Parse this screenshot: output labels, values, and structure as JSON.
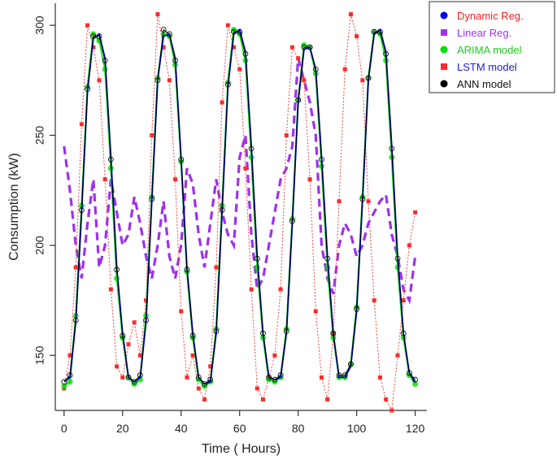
{
  "chart_data": {
    "type": "line",
    "xlabel": "Time ( Hours)",
    "ylabel": "Consumption (kW)",
    "xlim": [
      -3,
      124
    ],
    "ylim": [
      125,
      310
    ],
    "xticks": [
      0,
      20,
      40,
      60,
      80,
      100,
      120
    ],
    "yticks": [
      150,
      200,
      250,
      300
    ],
    "grid": false,
    "legend_position": "top-right",
    "x": [
      0,
      2,
      4,
      6,
      8,
      10,
      12,
      14,
      16,
      18,
      20,
      22,
      24,
      26,
      28,
      30,
      32,
      34,
      36,
      38,
      40,
      42,
      44,
      46,
      48,
      50,
      52,
      54,
      56,
      58,
      60,
      62,
      64,
      66,
      68,
      70,
      72,
      74,
      76,
      78,
      80,
      82,
      84,
      86,
      88,
      90,
      92,
      94,
      96,
      98,
      100,
      102,
      104,
      106,
      108,
      110,
      112,
      114,
      116,
      118,
      120
    ],
    "series": [
      {
        "name": "Dynamic Reg.",
        "color": "#0000ee",
        "marker": "circle",
        "values": [
          138,
          140,
          165,
          215,
          270,
          294,
          296,
          285,
          240,
          190,
          160,
          140,
          138,
          140,
          165,
          220,
          275,
          295,
          296,
          285,
          240,
          190,
          160,
          140,
          137,
          138,
          160,
          215,
          272,
          296,
          298,
          288,
          245,
          195,
          160,
          140,
          139,
          140,
          160,
          210,
          265,
          289,
          290,
          280,
          240,
          195,
          160,
          140,
          140,
          145,
          170,
          220,
          275,
          296,
          298,
          288,
          245,
          195,
          160,
          142,
          138
        ]
      },
      {
        "name": "Linear Reg.",
        "color": "#a030f0",
        "marker": "square",
        "values": [
          245,
          225,
          200,
          185,
          210,
          230,
          190,
          200,
          230,
          215,
          200,
          205,
          222,
          210,
          195,
          185,
          200,
          220,
          195,
          185,
          200,
          235,
          228,
          205,
          190,
          210,
          230,
          215,
          205,
          200,
          240,
          250,
          205,
          180,
          185,
          200,
          215,
          230,
          235,
          245,
          285,
          275,
          265,
          250,
          200,
          185,
          178,
          200,
          210,
          205,
          195,
          200,
          210,
          215,
          220,
          223,
          205,
          195,
          180,
          175,
          195
        ]
      },
      {
        "name": "ARIMA model",
        "color": "#00e000",
        "marker": "circle",
        "values": [
          136,
          138,
          168,
          218,
          272,
          296,
          293,
          280,
          235,
          185,
          158,
          140,
          137,
          139,
          168,
          222,
          276,
          296,
          295,
          282,
          238,
          188,
          158,
          139,
          136,
          138,
          162,
          218,
          274,
          298,
          296,
          284,
          240,
          190,
          158,
          139,
          138,
          140,
          162,
          212,
          266,
          291,
          290,
          278,
          236,
          190,
          158,
          140,
          140,
          146,
          172,
          222,
          276,
          297,
          296,
          284,
          240,
          190,
          158,
          141,
          137
        ]
      },
      {
        "name": "LSTM model",
        "color": "#ff2a2a",
        "marker": "square",
        "values": [
          135,
          150,
          190,
          255,
          300,
          290,
          275,
          230,
          180,
          145,
          140,
          155,
          165,
          150,
          175,
          250,
          305,
          290,
          275,
          230,
          170,
          140,
          150,
          135,
          130,
          145,
          190,
          265,
          300,
          290,
          280,
          235,
          180,
          135,
          130,
          140,
          150,
          180,
          250,
          290,
          285,
          275,
          230,
          170,
          140,
          130,
          160,
          220,
          280,
          305,
          295,
          275,
          220,
          175,
          140,
          130,
          125,
          150,
          175,
          200,
          215
        ]
      },
      {
        "name": "ANN model",
        "color": "#000000",
        "marker": "circle-open",
        "values": [
          138,
          141,
          166,
          216,
          271,
          295,
          295,
          284,
          239,
          189,
          159,
          140,
          138,
          141,
          166,
          221,
          275,
          298,
          296,
          284,
          239,
          189,
          159,
          140,
          137,
          139,
          161,
          216,
          273,
          297,
          297,
          287,
          244,
          194,
          160,
          140,
          139,
          141,
          161,
          211,
          266,
          290,
          290,
          280,
          239,
          194,
          160,
          141,
          141,
          146,
          171,
          221,
          276,
          297,
          297,
          287,
          244,
          194,
          160,
          142,
          139
        ]
      }
    ]
  }
}
